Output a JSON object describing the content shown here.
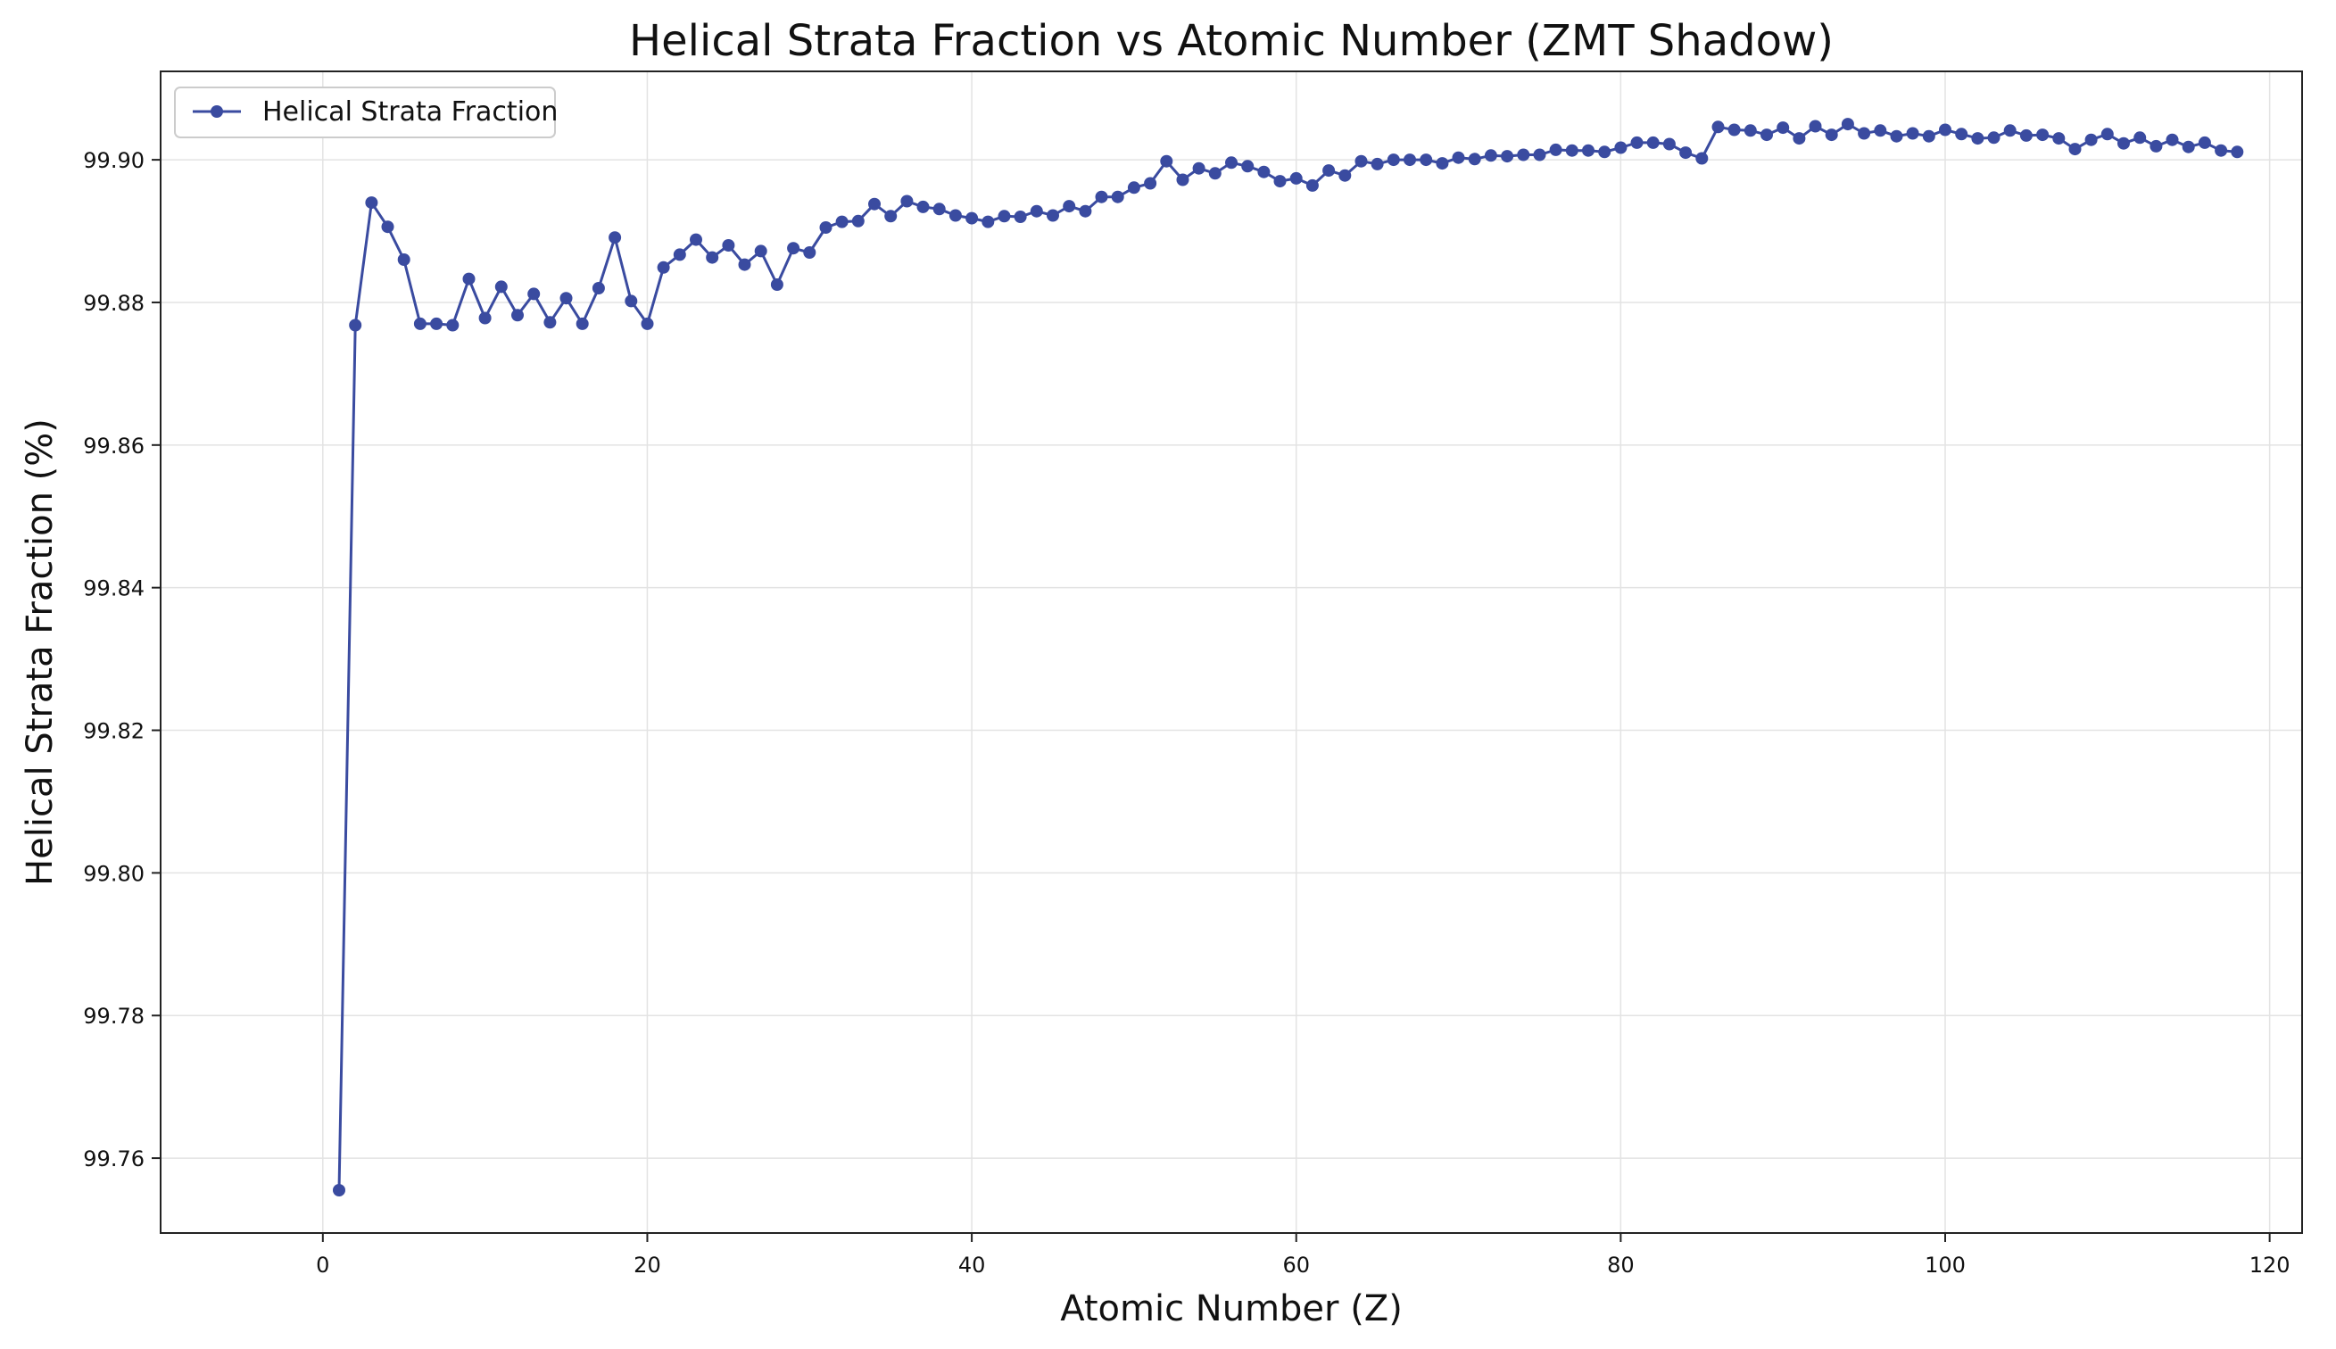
{
  "chart_data": {
    "type": "line",
    "title": "Helical Strata Fraction vs Atomic Number (ZMT Shadow)",
    "xlabel": "Atomic Number (Z)",
    "ylabel": "Helical Strata Fraction (%)",
    "xlim": [
      -10,
      122
    ],
    "ylim": [
      99.7495,
      99.9124
    ],
    "xticks": [
      0,
      20,
      40,
      60,
      80,
      100,
      120
    ],
    "yticks": [
      99.76,
      99.78,
      99.8,
      99.82,
      99.84,
      99.86,
      99.88,
      99.9
    ],
    "ytick_labels": [
      "99.76",
      "99.78",
      "99.80",
      "99.82",
      "99.84",
      "99.86",
      "99.88",
      "99.90"
    ],
    "grid": true,
    "legend_position": "top-left",
    "series": [
      {
        "name": "Helical Strata Fraction",
        "color": "#3a4ba0",
        "marker": "circle",
        "x": [
          1,
          2,
          3,
          4,
          5,
          6,
          7,
          8,
          9,
          10,
          11,
          12,
          13,
          14,
          15,
          16,
          17,
          18,
          19,
          20,
          21,
          22,
          23,
          24,
          25,
          26,
          27,
          28,
          29,
          30,
          31,
          32,
          33,
          34,
          35,
          36,
          37,
          38,
          39,
          40,
          41,
          42,
          43,
          44,
          45,
          46,
          47,
          48,
          49,
          50,
          51,
          52,
          53,
          54,
          55,
          56,
          57,
          58,
          59,
          60,
          61,
          62,
          63,
          64,
          65,
          66,
          67,
          68,
          69,
          70,
          71,
          72,
          73,
          74,
          75,
          76,
          77,
          78,
          79,
          80,
          81,
          82,
          83,
          84,
          85,
          86,
          87,
          88,
          89,
          90,
          91,
          92,
          93,
          94,
          95,
          96,
          97,
          98,
          99,
          100,
          101,
          102,
          103,
          104,
          105,
          106,
          107,
          108,
          109,
          110,
          111,
          112,
          113,
          114,
          115,
          116,
          117,
          118
        ],
        "y": [
          99.7555,
          99.8768,
          99.894,
          99.8906,
          99.886,
          99.877,
          99.877,
          99.8768,
          99.8833,
          99.8778,
          99.8822,
          99.8782,
          99.8812,
          99.8772,
          99.8806,
          99.877,
          99.882,
          99.8891,
          99.8802,
          99.877,
          99.8849,
          99.8867,
          99.8888,
          99.8863,
          99.888,
          99.8853,
          99.8872,
          99.8825,
          99.8876,
          99.887,
          99.8905,
          99.8913,
          99.8914,
          99.8938,
          99.8921,
          99.8942,
          99.8934,
          99.8931,
          99.8922,
          99.8918,
          99.8913,
          99.8921,
          99.892,
          99.8928,
          99.8922,
          99.8935,
          99.8928,
          99.8948,
          99.8948,
          99.8961,
          99.8967,
          99.8998,
          99.8972,
          99.8988,
          99.8981,
          99.8996,
          99.8991,
          99.8983,
          99.897,
          99.8974,
          99.8964,
          99.8985,
          99.8978,
          99.8998,
          99.8994,
          99.9,
          99.9,
          99.9,
          99.8995,
          99.9003,
          99.9001,
          99.9006,
          99.9005,
          99.9007,
          99.9007,
          99.9014,
          99.9013,
          99.9013,
          99.9011,
          99.9017,
          99.9024,
          99.9024,
          99.9022,
          99.901,
          99.9002,
          99.9046,
          99.9042,
          99.9041,
          99.9035,
          99.9045,
          99.903,
          99.9047,
          99.9035,
          99.905,
          99.9037,
          99.9041,
          99.9033,
          99.9037,
          99.9033,
          99.9042,
          99.9036,
          99.903,
          99.9031,
          99.9041,
          99.9034,
          99.9035,
          99.903,
          99.9015,
          99.9028,
          99.9036,
          99.9023,
          99.9031,
          99.9019,
          99.9028,
          99.9018,
          99.9024,
          99.9013,
          99.9011
        ]
      }
    ]
  }
}
